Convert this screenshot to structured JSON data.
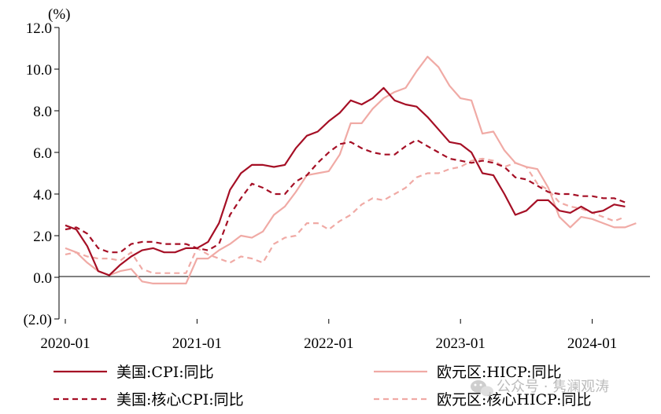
{
  "chart_data": {
    "type": "line",
    "unit": "(%)",
    "ylim": [
      -2.0,
      12.0
    ],
    "y_ticks": [
      -2.0,
      0.0,
      2.0,
      4.0,
      6.0,
      8.0,
      10.0,
      12.0
    ],
    "y_tick_labels": [
      "(2.0)",
      "0.0",
      "2.0",
      "4.0",
      "6.0",
      "8.0",
      "10.0",
      "12.0"
    ],
    "x_start": "2020-01",
    "x_end": "2024-05",
    "x_tick_labels": [
      "2020-01",
      "2021-01",
      "2022-01",
      "2023-01",
      "2024-01"
    ],
    "grid": false,
    "legend_position": "bottom",
    "colors": {
      "dark_red": "#a50f25",
      "light_pink": "#f0aaa5"
    },
    "series": [
      {
        "name": "美国:CPI:同比",
        "style": "solid",
        "color": "#a50f25",
        "values": [
          2.5,
          2.3,
          1.5,
          0.3,
          0.1,
          0.6,
          1.0,
          1.3,
          1.4,
          1.2,
          1.2,
          1.4,
          1.4,
          1.7,
          2.6,
          4.2,
          5.0,
          5.4,
          5.4,
          5.3,
          5.4,
          6.2,
          6.8,
          7.0,
          7.5,
          7.9,
          8.5,
          8.3,
          8.6,
          9.1,
          8.5,
          8.3,
          8.2,
          7.7,
          7.1,
          6.5,
          6.4,
          6.0,
          5.0,
          4.9,
          4.0,
          3.0,
          3.2,
          3.7,
          3.7,
          3.2,
          3.1,
          3.4,
          3.1,
          3.2,
          3.5,
          3.4
        ]
      },
      {
        "name": "欧元区:HICP:同比",
        "style": "solid",
        "color": "#f0aaa5",
        "values": [
          1.4,
          1.2,
          0.7,
          0.3,
          0.1,
          0.3,
          0.4,
          -0.2,
          -0.3,
          -0.3,
          -0.3,
          -0.3,
          0.9,
          0.9,
          1.3,
          1.6,
          2.0,
          1.9,
          2.2,
          3.0,
          3.4,
          4.1,
          4.9,
          5.0,
          5.1,
          5.9,
          7.4,
          7.4,
          8.1,
          8.6,
          8.9,
          9.1,
          9.9,
          10.6,
          10.1,
          9.2,
          8.6,
          8.5,
          6.9,
          7.0,
          6.1,
          5.5,
          5.3,
          5.2,
          4.3,
          2.9,
          2.4,
          2.9,
          2.8,
          2.6,
          2.4,
          2.4,
          2.6
        ]
      },
      {
        "name": "美国:核心CPI:同比",
        "style": "dashed",
        "color": "#a50f25",
        "values": [
          2.3,
          2.4,
          2.1,
          1.4,
          1.2,
          1.2,
          1.6,
          1.7,
          1.7,
          1.6,
          1.6,
          1.6,
          1.4,
          1.3,
          1.6,
          3.0,
          3.8,
          4.5,
          4.3,
          4.0,
          4.0,
          4.6,
          4.9,
          5.5,
          6.0,
          6.4,
          6.5,
          6.2,
          6.0,
          5.9,
          5.9,
          6.3,
          6.6,
          6.3,
          6.0,
          5.7,
          5.6,
          5.5,
          5.6,
          5.5,
          5.3,
          4.8,
          4.7,
          4.4,
          4.1,
          4.0,
          4.0,
          3.9,
          3.9,
          3.8,
          3.8,
          3.6
        ]
      },
      {
        "name": "欧元区:核心HICP:同比",
        "style": "dashed",
        "color": "#f0aaa5",
        "values": [
          1.1,
          1.2,
          1.0,
          0.9,
          0.9,
          0.8,
          1.2,
          0.4,
          0.2,
          0.2,
          0.2,
          0.2,
          1.4,
          1.1,
          0.9,
          0.7,
          1.0,
          0.9,
          0.7,
          1.6,
          1.9,
          2.0,
          2.6,
          2.6,
          2.3,
          2.7,
          3.0,
          3.5,
          3.8,
          3.7,
          4.0,
          4.3,
          4.8,
          5.0,
          5.0,
          5.2,
          5.3,
          5.6,
          5.7,
          5.6,
          5.3,
          5.5,
          5.3,
          4.5,
          4.2,
          3.6,
          3.4,
          3.3,
          3.1,
          2.9,
          2.7,
          2.9
        ]
      }
    ]
  },
  "watermark": "公众号 · 隽澜观涛"
}
